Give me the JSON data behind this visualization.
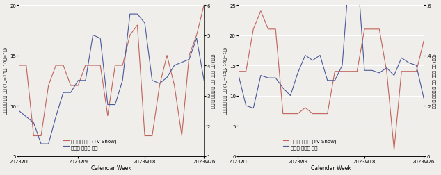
{
  "left_chart": {
    "weeks": [
      1,
      2,
      3,
      4,
      5,
      6,
      7,
      8,
      9,
      10,
      11,
      12,
      13,
      14,
      15,
      16,
      17,
      18,
      19,
      20,
      21,
      22,
      23,
      24,
      25,
      26
    ],
    "red_line": [
      14,
      14,
      7,
      7,
      12,
      14,
      14,
      12,
      12,
      14,
      14,
      14,
      9,
      14,
      14,
      17,
      18,
      7,
      7,
      12,
      15,
      12,
      7,
      15,
      17,
      20
    ],
    "blue_line": [
      2.5,
      2.3,
      2.1,
      1.4,
      1.4,
      2.3,
      3.1,
      3.1,
      3.5,
      3.5,
      5.0,
      4.9,
      2.7,
      2.7,
      3.5,
      5.7,
      5.7,
      5.4,
      3.5,
      3.4,
      3.6,
      4.0,
      4.1,
      4.2,
      4.9,
      3.5
    ],
    "ylim_left": [
      5,
      20
    ],
    "ylim_right": [
      1,
      6
    ],
    "yticks_left": [
      5,
      10,
      15,
      20
    ],
    "yticks_right": [
      1,
      2,
      3,
      4,
      5,
      6
    ],
    "ylabel_left": "케이콘텐츠 순위 합계 (1등=10점, 10등=1점)",
    "ylabel_right": "신규 등 가니다 외 국인 관광객 평균 (만명)",
    "xlabel": "Calendar Week",
    "xtick_labels": [
      "2023w1",
      "2023w9",
      "2023w18",
      "2023w26"
    ],
    "xtick_positions": [
      1,
      9,
      18,
      26
    ],
    "legend_red": "인기순위 합계 (TV Show)",
    "legend_blue": "외국인 관광객 평가"
  },
  "right_chart": {
    "weeks": [
      1,
      2,
      3,
      4,
      5,
      6,
      7,
      8,
      9,
      10,
      11,
      12,
      13,
      14,
      15,
      16,
      17,
      18,
      19,
      20,
      21,
      22,
      23,
      24,
      25,
      26
    ],
    "red_line": [
      14,
      14,
      21,
      24,
      21,
      21,
      7,
      7,
      7,
      8,
      7,
      7,
      7,
      14,
      14,
      14,
      14,
      21,
      21,
      21,
      14,
      1,
      14,
      14,
      14,
      19
    ],
    "blue_line": [
      0.32,
      0.2,
      0.19,
      0.32,
      0.31,
      0.31,
      0.27,
      0.24,
      0.33,
      0.4,
      0.38,
      0.4,
      0.3,
      0.3,
      0.36,
      0.75,
      0.75,
      0.34,
      0.34,
      0.33,
      0.35,
      0.32,
      0.39,
      0.37,
      0.36,
      0.23
    ],
    "ylim_left": [
      0,
      25
    ],
    "ylim_right": [
      0,
      0.6
    ],
    "yticks_left": [
      0,
      5,
      10,
      15,
      20,
      25
    ],
    "yticks_right": [
      0,
      0.2,
      0.4,
      0.6
    ],
    "ylabel_left": "케이콘텐츠 순위 합계 (1등=10점, 10등=1점)",
    "ylabel_right": "신규 등 가니다 외 국인 관광객 평균 (만명)",
    "xlabel": "Calendar Week",
    "xtick_labels": [
      "2023w1",
      "2023w9",
      "2023w18",
      "2023w26"
    ],
    "xtick_positions": [
      1,
      9,
      18,
      26
    ],
    "legend_red": "인기순위 합계 (TV Show)",
    "legend_blue": "외국인 관광객 평가"
  },
  "red_color": "#c0635a",
  "blue_color": "#4a5a9a",
  "bg_color": "#f0eeeb",
  "grid_color": "#ffffff",
  "font_size_ylabel": 4.5,
  "font_size_tick": 5.0,
  "font_size_legend": 5.0,
  "font_size_xlabel": 5.5,
  "line_width": 0.8
}
